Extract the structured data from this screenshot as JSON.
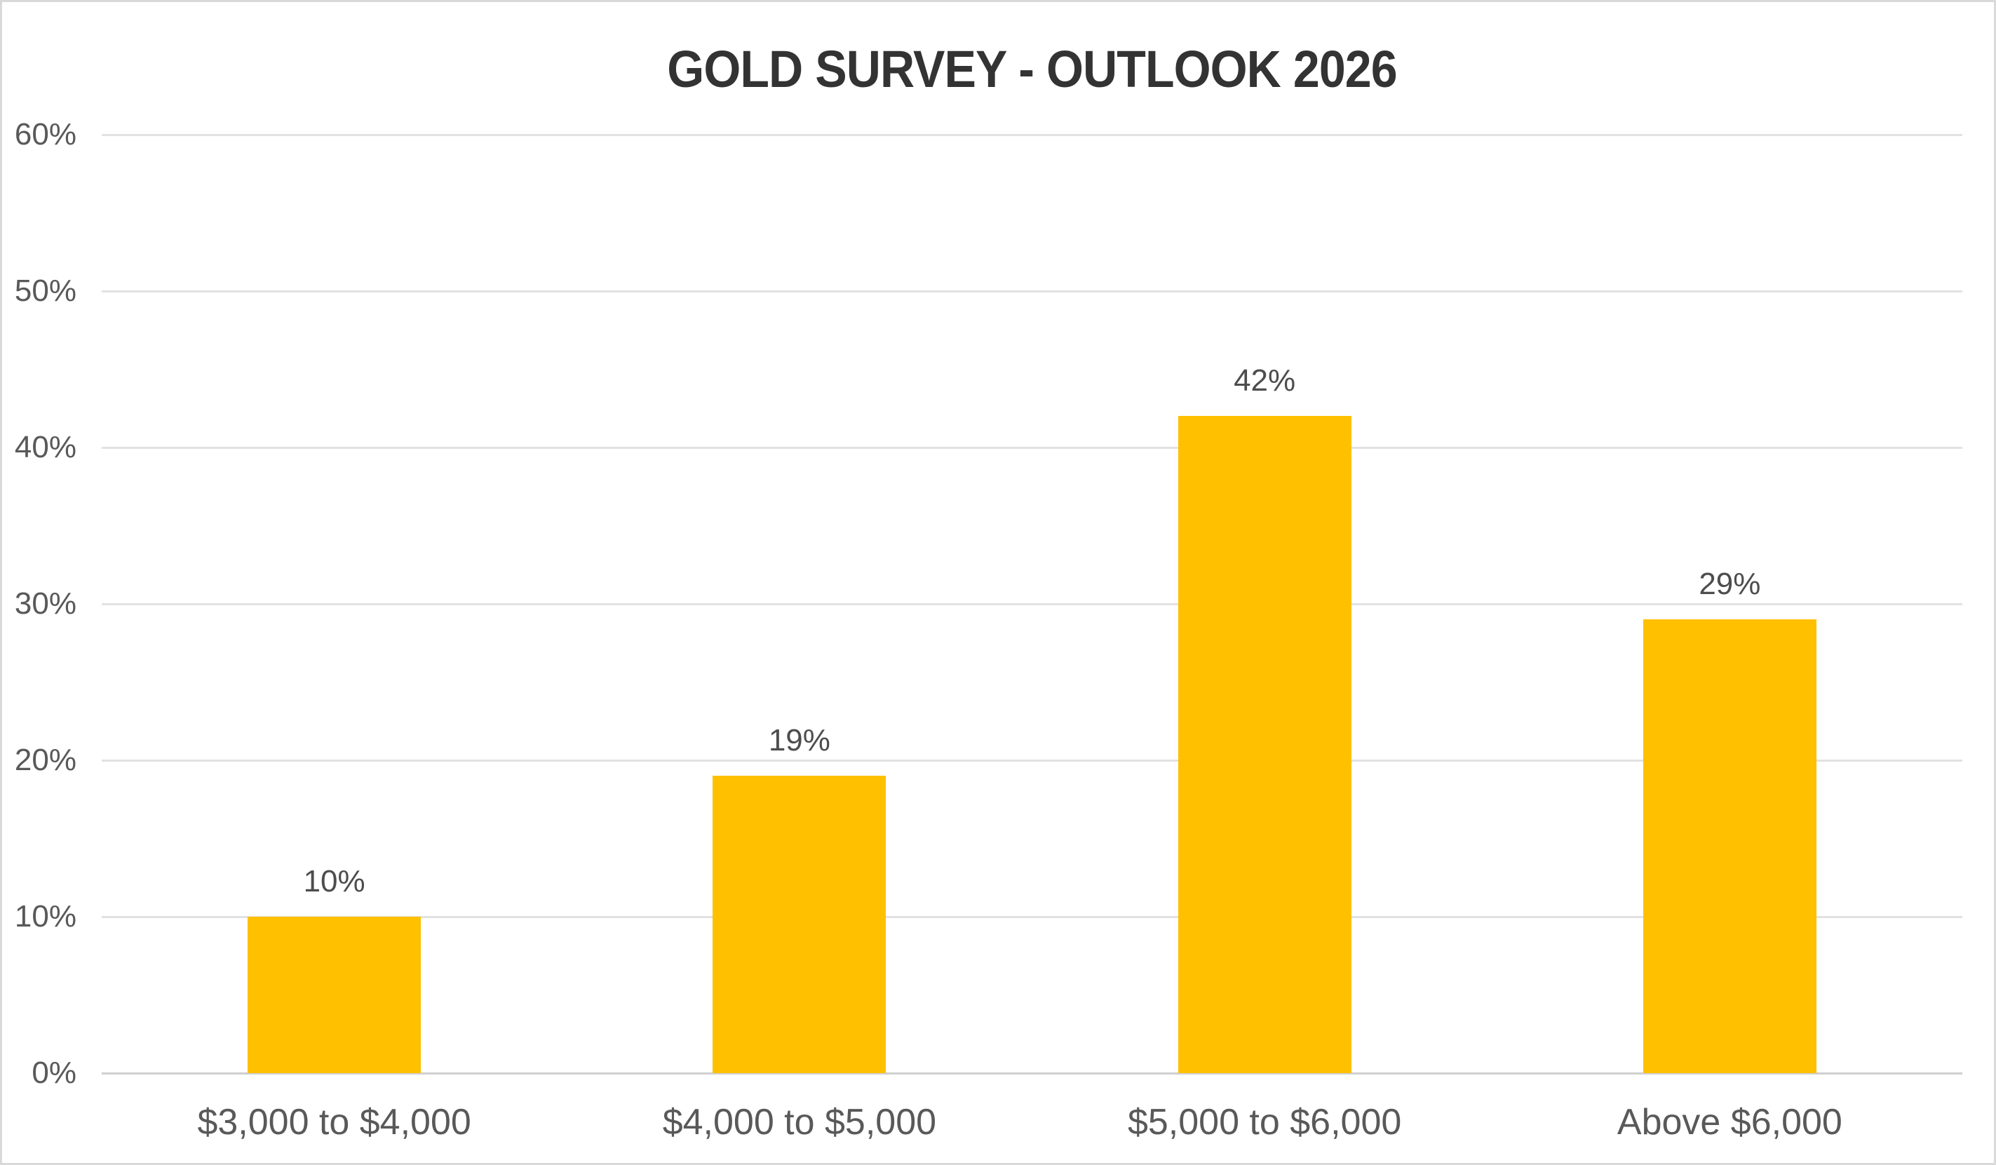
{
  "chart_data": {
    "type": "bar",
    "title": "GOLD SURVEY - OUTLOOK 2026",
    "categories": [
      "$3,000 to $4,000",
      "$4,000 to $5,000",
      "$5,000 to $6,000",
      "Above $6,000"
    ],
    "values": [
      10,
      19,
      42,
      29
    ],
    "data_labels": [
      "10%",
      "19%",
      "42%",
      "29%"
    ],
    "xlabel": "",
    "ylabel": "",
    "ylim": [
      0,
      60
    ],
    "y_tick_step": 10,
    "y_tick_labels": [
      "0%",
      "10%",
      "20%",
      "30%",
      "40%",
      "50%",
      "60%"
    ],
    "grid": true,
    "legend_position": "none",
    "colors": {
      "bar": "#FFC000",
      "gridline": "#E2E2E2",
      "axis_line": "#CFCFCF",
      "tick_text": "#595959",
      "data_label_text": "#4D4D4D",
      "title_text": "#333333",
      "background": "#FFFFFF",
      "canvas_border": "#D9D9D9"
    }
  }
}
